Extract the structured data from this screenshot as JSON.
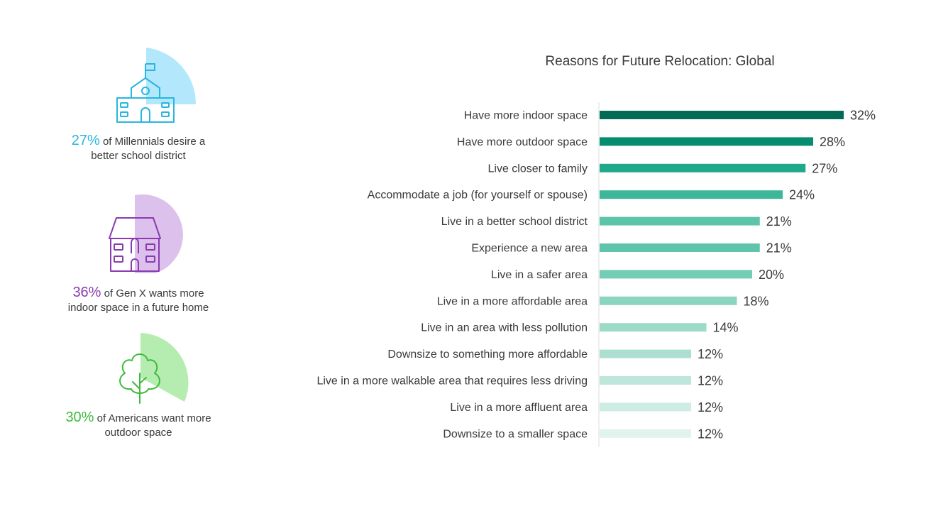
{
  "stats": [
    {
      "percent": "27%",
      "text": "of Millennials desire a",
      "text2": "better school district",
      "color": "#29b6e0",
      "shape_color": "#b3e7fb",
      "icon": "school-icon"
    },
    {
      "percent": "36%",
      "text": "of Gen X wants more",
      "text2": "indoor space in a future home",
      "color": "#8b3bb0",
      "shape_color": "#dcc1ed",
      "icon": "house-icon"
    },
    {
      "percent": "30%",
      "text": "of Americans want more",
      "text2": "outdoor space",
      "color": "#3dbb3d",
      "shape_color": "#b5ecb0",
      "icon": "tree-icon"
    }
  ],
  "chart_data": {
    "type": "bar",
    "orientation": "horizontal",
    "title": "Reasons for Future Relocation: Global",
    "categories": [
      "Have more indoor space",
      "Have more outdoor space",
      "Live closer to family",
      "Accommodate a job (for yourself or spouse)",
      "Live in a better school district",
      "Experience a new area",
      "Live in a safer area",
      "Live in a more affordable area",
      "Live in an area with less pollution",
      "Downsize to something more affordable",
      "Live in a more walkable area that requires less driving",
      "Live in a more affluent area",
      "Downsize to a smaller space"
    ],
    "values": [
      32,
      28,
      27,
      24,
      21,
      21,
      20,
      18,
      14,
      12,
      12,
      12,
      12
    ],
    "value_labels": [
      "32%",
      "28%",
      "27%",
      "24%",
      "21%",
      "21%",
      "20%",
      "18%",
      "14%",
      "12%",
      "12%",
      "12%",
      "12%"
    ],
    "colors": [
      "#026b56",
      "#068c6f",
      "#1fa98a",
      "#3cb79a",
      "#5cc4a8",
      "#5fc5aa",
      "#73ccb4",
      "#8ad5c0",
      "#9ddbc9",
      "#acdfd0",
      "#bee6da",
      "#cdece3",
      "#e0f3ed"
    ],
    "xlim": [
      0,
      35
    ],
    "grid": false,
    "legend": false
  }
}
